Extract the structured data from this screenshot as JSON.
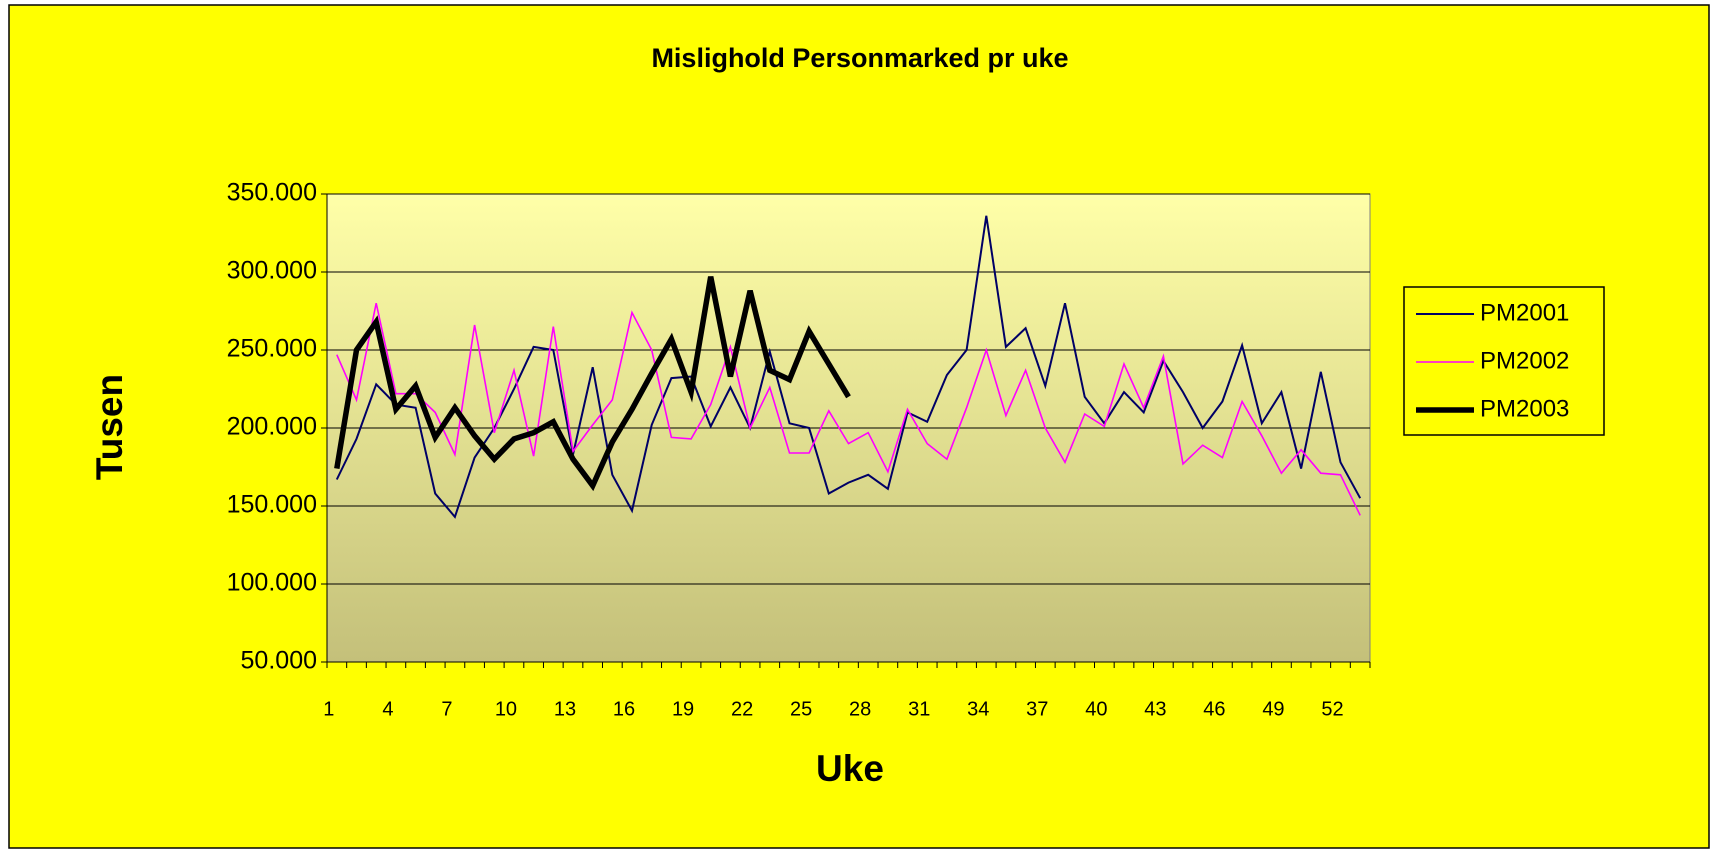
{
  "chart_data": {
    "type": "line",
    "title": "Mislighold Personmarked pr uke",
    "x_label": "Uke",
    "y_label": "Tusen",
    "categories": [
      "1",
      null,
      null,
      "4",
      null,
      null,
      "7",
      null,
      null,
      "10",
      null,
      null,
      "13",
      null,
      null,
      "16",
      null,
      null,
      "19",
      null,
      null,
      "22",
      null,
      null,
      "25",
      null,
      null,
      "28",
      null,
      null,
      "31",
      null,
      null,
      "34",
      null,
      null,
      "37",
      null,
      null,
      "40",
      null,
      null,
      "43",
      null,
      null,
      "46",
      null,
      null,
      "49",
      null,
      null,
      "52",
      null
    ],
    "ylim": [
      50000,
      350000
    ],
    "yticks": [
      {
        "value": 50000,
        "label": "50.000"
      },
      {
        "value": 100000,
        "label": "100.000"
      },
      {
        "value": 150000,
        "label": "150.000"
      },
      {
        "value": 200000,
        "label": "200.000"
      },
      {
        "value": 250000,
        "label": "250.000"
      },
      {
        "value": 300000,
        "label": "300.000"
      },
      {
        "value": 350000,
        "label": "350.000"
      }
    ],
    "grid": true,
    "legend": "right",
    "series": [
      {
        "name": "PM2001",
        "color": "#000066",
        "values": [
          167000,
          193000,
          228000,
          215000,
          213000,
          158000,
          143000,
          181000,
          200000,
          225000,
          252000,
          250000,
          183000,
          239000,
          170000,
          147000,
          202000,
          232000,
          233000,
          201000,
          226000,
          200000,
          249000,
          203000,
          200000,
          158000,
          165000,
          170000,
          161000,
          210000,
          204000,
          234000,
          250000,
          336000,
          252000,
          264000,
          227000,
          280000,
          220000,
          203000,
          223000,
          210000,
          243000,
          223000,
          200000,
          217000,
          253000,
          203000,
          223000,
          174000,
          236000,
          178000,
          155000
        ]
      },
      {
        "name": "PM2002",
        "color": "#ff00ff",
        "values": [
          247000,
          218000,
          280000,
          222000,
          222000,
          210000,
          183000,
          266000,
          197000,
          237000,
          182000,
          265000,
          185000,
          202000,
          218000,
          274000,
          250000,
          194000,
          193000,
          215000,
          252000,
          200000,
          226000,
          184000,
          184000,
          211000,
          190000,
          197000,
          172000,
          212000,
          190000,
          180000,
          213000,
          250000,
          208000,
          237000,
          200000,
          178000,
          209000,
          201000,
          241000,
          213000,
          246000,
          177000,
          189000,
          181000,
          217000,
          195000,
          171000,
          186000,
          171000,
          170000,
          144000
        ]
      },
      {
        "name": "PM2003",
        "color": "#000000",
        "values": [
          174000,
          250000,
          268000,
          212000,
          227000,
          194000,
          213000,
          195000,
          180000,
          193000,
          197000,
          204000,
          180000,
          163000,
          191000,
          212000,
          235000,
          257000,
          223000,
          297000,
          233000,
          288000,
          237000,
          231000,
          262000,
          241000,
          220000,
          null,
          null,
          null,
          null,
          null,
          null,
          null,
          null,
          null,
          null,
          null,
          null,
          null,
          null,
          null,
          null,
          null,
          null,
          null,
          null,
          null,
          null,
          null,
          null,
          null,
          null
        ]
      }
    ]
  }
}
